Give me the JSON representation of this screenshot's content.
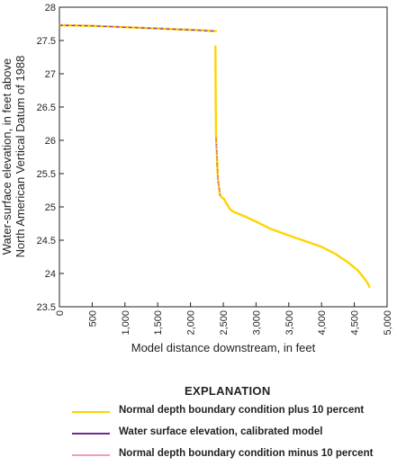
{
  "chart_data": {
    "type": "line",
    "xlabel": "Model distance downstream, in feet",
    "ylabel_lines": [
      "Water-surface elevation, in feet above",
      "North American Vertical Datum of 1988"
    ],
    "xlim": [
      0,
      5000
    ],
    "ylim": [
      23.5,
      28
    ],
    "x_ticks": [
      0,
      500,
      1000,
      1500,
      2000,
      2500,
      3000,
      3500,
      4000,
      4500,
      5000
    ],
    "x_tick_labels": [
      "0",
      "500",
      "1,000",
      "1,500",
      "2,000",
      "2,500",
      "3,000",
      "3,500",
      "4,000",
      "4,500",
      "5,000"
    ],
    "y_ticks": [
      23.5,
      24,
      24.5,
      25,
      25.5,
      26,
      26.5,
      27,
      27.5,
      28
    ],
    "y_tick_labels": [
      "23.5",
      "24",
      "24.5",
      "25",
      "25.5",
      "26",
      "26.5",
      "27",
      "27.5",
      "28"
    ],
    "grid": false,
    "legend_title": "EXPLANATION",
    "legend_position": "bottom",
    "series": [
      {
        "name": "Normal depth boundary condition plus 10 percent",
        "color": "#ffd400",
        "segments": [
          {
            "x": [
              0,
              500,
              1000,
              1500,
              2000,
              2390
            ],
            "y": [
              27.73,
              27.72,
              27.7,
              27.68,
              27.66,
              27.64
            ]
          },
          {
            "x": [
              2380,
              2385,
              2390,
              2400,
              2410,
              2420,
              2450,
              2480,
              2510,
              2550,
              2600,
              2650,
              2800,
              3000,
              3200,
              3500,
              3800,
              4000,
              4200,
              4400,
              4550,
              4650,
              4700,
              4730
            ],
            "y": [
              27.41,
              26.6,
              26.03,
              25.85,
              25.6,
              25.4,
              25.18,
              25.14,
              25.12,
              25.05,
              24.97,
              24.93,
              24.87,
              24.78,
              24.68,
              24.57,
              24.47,
              24.4,
              24.3,
              24.17,
              24.05,
              23.93,
              23.86,
              23.8
            ]
          }
        ]
      },
      {
        "name": "Water surface elevation, calibrated model",
        "color": "#6a2c91",
        "segments": [
          {
            "x": [
              0,
              500,
              1000,
              1500,
              2000,
              2390
            ],
            "y": [
              27.73,
              27.72,
              27.7,
              27.68,
              27.66,
              27.64
            ]
          },
          {
            "x": [
              2390,
              2400,
              2410,
              2420,
              2450
            ],
            "y": [
              26.03,
              25.85,
              25.6,
              25.4,
              25.18
            ]
          }
        ]
      },
      {
        "name": "Normal depth boundary condition minus 10 percent",
        "color": "#f49ac1",
        "segments": [
          {
            "x": [
              0,
              500,
              1000,
              1500,
              2000,
              2390
            ],
            "y": [
              27.74,
              27.73,
              27.71,
              27.69,
              27.67,
              27.65
            ]
          },
          {
            "x": [
              2390,
              2400,
              2410,
              2420,
              2450
            ],
            "y": [
              26.02,
              25.84,
              25.59,
              25.39,
              25.17
            ]
          }
        ]
      }
    ]
  }
}
